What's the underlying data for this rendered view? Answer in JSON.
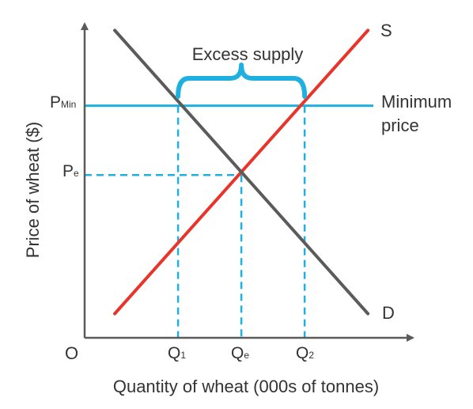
{
  "chart_data": {
    "type": "line",
    "xlabel": "Quantity of wheat (000s of tonnes)",
    "ylabel": "Price of wheat ($)",
    "origin_label": "O",
    "ylim": [
      0,
      10
    ],
    "xlim": [
      0,
      10
    ],
    "series": [
      {
        "name": "S",
        "color": "#e8342a",
        "x": [
          1,
          9.4
        ],
        "y": [
          0.8,
          10.2
        ]
      },
      {
        "name": "D",
        "color": "#5b5b5b",
        "x": [
          1,
          9.4
        ],
        "y": [
          10.2,
          0.8
        ]
      }
    ],
    "price_floor": {
      "label_line1": "Minimum",
      "label_line2": "price",
      "y": 7.7,
      "color": "#1fb0df"
    },
    "equilibrium": {
      "x": 5.2,
      "y": 5.4
    },
    "ticks": {
      "x": [
        {
          "main": "Q",
          "sub": "1",
          "value": 3.1
        },
        {
          "main": "Q",
          "sub": "e",
          "value": 5.2
        },
        {
          "main": "Q",
          "sub": "2",
          "value": 7.3
        }
      ],
      "y": [
        {
          "main": "P",
          "sub": "Min",
          "value": 7.7
        },
        {
          "main": "P",
          "sub": "e",
          "value": 5.4
        }
      ]
    },
    "annotation": {
      "text": "Excess supply",
      "from_x": 3.1,
      "to_x": 7.3
    }
  },
  "colors": {
    "axis": "#5b5b5b",
    "guide": "#1fb0df",
    "brace": "#1fb0df"
  }
}
